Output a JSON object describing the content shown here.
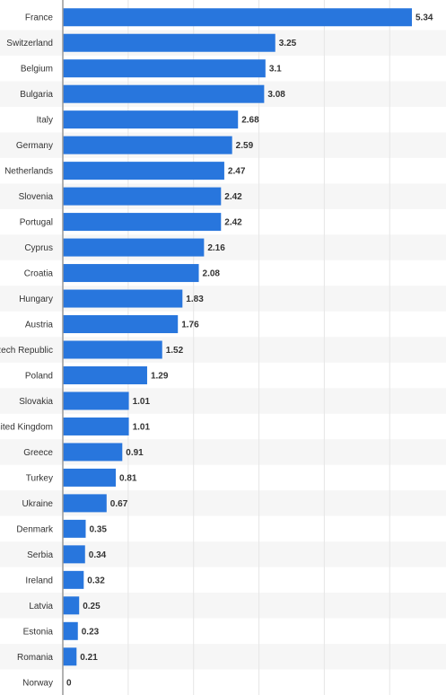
{
  "chart_data": {
    "type": "bar",
    "orientation": "horizontal",
    "categories": [
      "France",
      "Switzerland",
      "Belgium",
      "Bulgaria",
      "Italy",
      "Germany",
      "Netherlands",
      "Slovenia",
      "Portugal",
      "Cyprus",
      "Croatia",
      "Hungary",
      "Austria",
      "Czech Republic",
      "Poland",
      "Slovakia",
      "United Kingdom",
      "Greece",
      "Turkey",
      "Ukraine",
      "Denmark",
      "Serbia",
      "Ireland",
      "Latvia",
      "Estonia",
      "Romania",
      "Norway"
    ],
    "values": [
      5.34,
      3.25,
      3.1,
      3.08,
      2.68,
      2.59,
      2.47,
      2.42,
      2.42,
      2.16,
      2.08,
      1.83,
      1.76,
      1.52,
      1.29,
      1.01,
      1.01,
      0.91,
      0.81,
      0.67,
      0.35,
      0.34,
      0.32,
      0.25,
      0.23,
      0.21,
      0
    ],
    "value_labels": [
      "5.34",
      "3.25",
      "3.1",
      "3.08",
      "2.68",
      "2.59",
      "2.47",
      "2.42",
      "2.42",
      "2.16",
      "2.08",
      "1.83",
      "1.76",
      "1.52",
      "1.29",
      "1.01",
      "1.01",
      "0.91",
      "0.81",
      "0.67",
      "0.35",
      "0.34",
      "0.32",
      "0.25",
      "0.23",
      "0.21",
      "0"
    ],
    "xlim": [
      0,
      5.6
    ],
    "grid": true,
    "colors": {
      "bar": "#2876dd",
      "row_alt": "#f6f6f6",
      "grid": "#e6e6e6",
      "axis": "#999999"
    }
  }
}
